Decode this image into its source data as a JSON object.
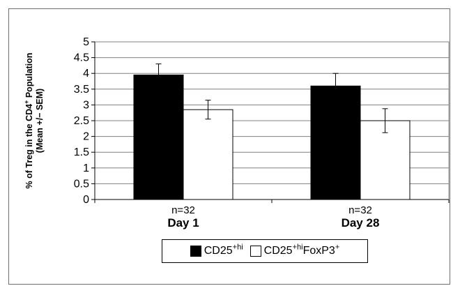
{
  "chart_data": {
    "type": "bar",
    "title": "",
    "xlabel": "",
    "ylabel_line1": "% of Treg in the CD4+ Population",
    "ylabel_line2": "(Mean +/− SEM)",
    "ylim": [
      0,
      5
    ],
    "yticks": [
      0,
      0.5,
      1,
      1.5,
      2,
      2.5,
      3,
      3.5,
      4,
      4.5,
      5
    ],
    "ytick_labels": [
      "0",
      "0.5",
      "1",
      "1.5",
      "2",
      "2.5",
      "3",
      "3.5",
      "4",
      "4.5",
      "5"
    ],
    "grid": true,
    "legend_position": "bottom",
    "categories": [
      {
        "n": "n=32",
        "label": "Day 1"
      },
      {
        "n": "n=32",
        "label": "Day 28"
      }
    ],
    "series": [
      {
        "name": "CD25+hi",
        "name_base": "CD25",
        "name_sup": "+hi",
        "color": "#000000",
        "values": [
          3.95,
          3.6
        ],
        "sem": [
          0.35,
          0.4
        ]
      },
      {
        "name": "CD25+hiFoxP3+",
        "name_base": "CD25",
        "name_sup": "+hi",
        "name_mid": "FoxP3",
        "name_sup2": "+",
        "color": "#ffffff",
        "values": [
          2.85,
          2.5
        ],
        "sem": [
          0.3,
          0.38
        ]
      }
    ]
  }
}
